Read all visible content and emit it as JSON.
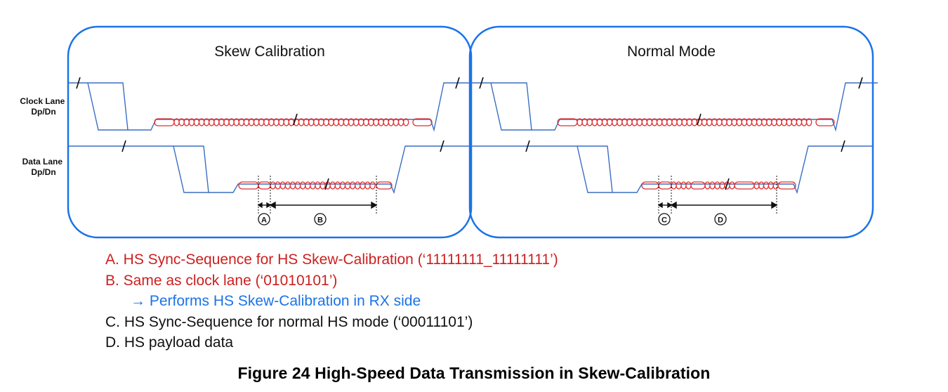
{
  "panels": [
    {
      "id": "skew",
      "title": "Skew Calibration",
      "data_markers": [
        "A",
        "B"
      ]
    },
    {
      "id": "normal",
      "title": "Normal Mode",
      "data_markers": [
        "C",
        "D"
      ]
    }
  ],
  "lanes": {
    "clock": [
      "Clock Lane",
      "Dp/Dn"
    ],
    "data": [
      "Data Lane",
      "Dp/Dn"
    ]
  },
  "legend": [
    {
      "text": "A. HS Sync-Sequence for HS Skew-Calibration (‘11111111_11111111’)",
      "color": "#cc1f1f",
      "indent": false
    },
    {
      "text": "B. Same as clock lane (‘01010101’)",
      "color": "#cc1f1f",
      "indent": false
    },
    {
      "text": "→ Performs HS Skew-Calibration in RX side",
      "color": "#1a73e8",
      "indent": true
    },
    {
      "text": "C. HS Sync-Sequence for normal HS mode (‘00011101’)",
      "color": "#111111",
      "indent": false
    },
    {
      "text": "D. HS payload data",
      "color": "#111111",
      "indent": false
    }
  ],
  "caption": "Figure 24 High-Speed Data Transmission in Skew-Calibration",
  "colors": {
    "frame": "#1a73e8",
    "signal": "#3a6fc4",
    "hs": "#e03030",
    "text": "#111111"
  }
}
